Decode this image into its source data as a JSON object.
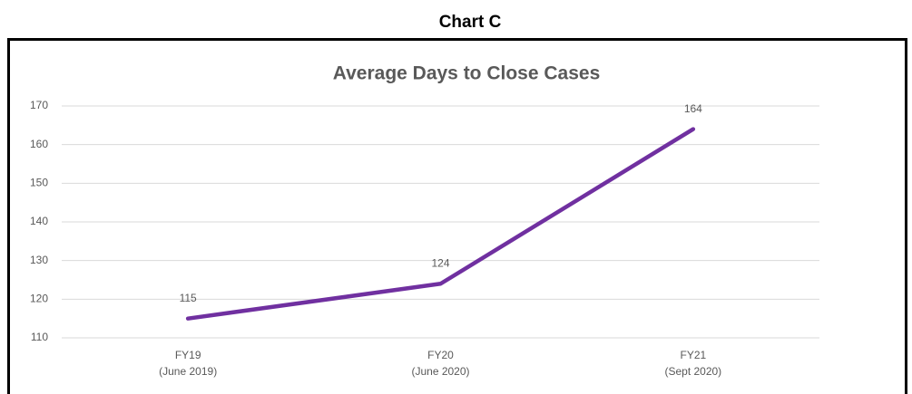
{
  "heading": "Chart C",
  "chart_data": {
    "type": "line",
    "title": "Average Days to Close Cases",
    "categories": [
      [
        "FY19",
        "(June 2019)"
      ],
      [
        "FY20",
        "(June 2020)"
      ],
      [
        "FY21",
        "(Sept 2020)"
      ]
    ],
    "series": [
      {
        "name": "Average Days to Close Cases",
        "color": "#7030a0",
        "values": [
          115,
          124,
          164
        ]
      }
    ],
    "ylim": [
      110,
      170
    ],
    "yticks": [
      110,
      120,
      130,
      140,
      150,
      160,
      170
    ],
    "grid": true,
    "legend": false
  }
}
